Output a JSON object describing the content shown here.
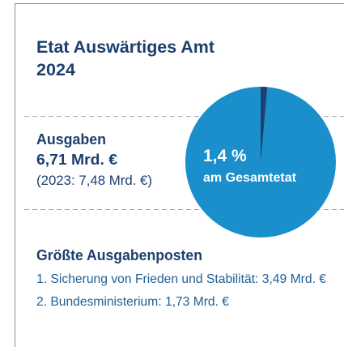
{
  "header": {
    "title": "Etat Auswärtiges Amt",
    "year": "2024"
  },
  "spending": {
    "label": "Ausgaben",
    "amount": "6,71 Mrd. €",
    "previous": "(2023: 7,48 Mrd. €)"
  },
  "chart_data": {
    "type": "pie",
    "values": [
      1.4
    ],
    "value_labels": [
      "1,4 %"
    ],
    "annotation": "am Gesamtetat",
    "colors": [
      "#1d3f6e"
    ],
    "background_color": "#1a8fcc"
  },
  "top_items": {
    "title": "Größte Ausgabenposten",
    "items": [
      "1. Sicherung von Frieden und Stabilität: 3,49 Mrd. €",
      "2. Bundesministerium: 1,73 Mrd. €"
    ]
  }
}
